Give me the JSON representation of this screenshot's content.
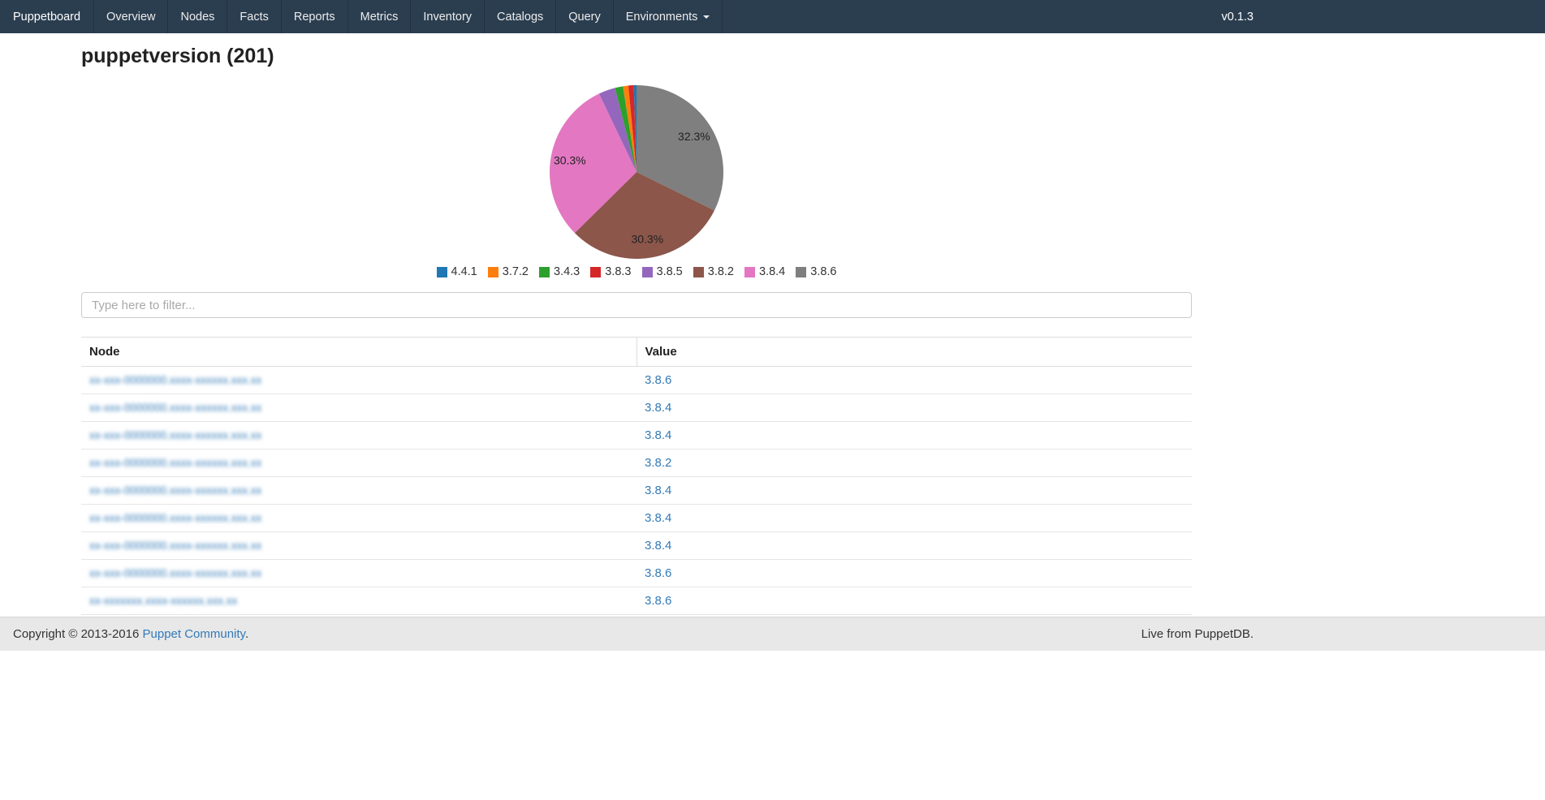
{
  "navbar": {
    "brand": "Puppetboard",
    "items": [
      "Overview",
      "Nodes",
      "Facts",
      "Reports",
      "Metrics",
      "Inventory",
      "Catalogs",
      "Query"
    ],
    "environments": "Environments",
    "version": "v0.1.3"
  },
  "page": {
    "title": "puppetversion (201)"
  },
  "chart_data": {
    "type": "pie",
    "unit": "percent",
    "slices": [
      {
        "label": "4.4.1",
        "value": 0.5,
        "color": "#1f77b4"
      },
      {
        "label": "3.7.2",
        "value": 1.0,
        "color": "#ff7f0e"
      },
      {
        "label": "3.4.3",
        "value": 1.5,
        "color": "#2ca02c"
      },
      {
        "label": "3.8.3",
        "value": 1.0,
        "color": "#d62728"
      },
      {
        "label": "3.8.5",
        "value": 3.1,
        "color": "#9467bd"
      },
      {
        "label": "3.8.2",
        "value": 30.3,
        "color": "#8c564b"
      },
      {
        "label": "3.8.4",
        "value": 30.3,
        "color": "#e377c2"
      },
      {
        "label": "3.8.6",
        "value": 32.3,
        "color": "#7f7f7f"
      }
    ],
    "draw_order": [
      "3.8.6",
      "3.8.2",
      "3.8.4",
      "3.8.5",
      "3.4.3",
      "3.7.2",
      "3.8.3",
      "4.4.1"
    ],
    "start_angle": "top",
    "direction": "clockwise",
    "legend_position": "bottom",
    "visible_percent_labels": [
      "32.3%",
      "30.3%",
      "30.3%"
    ],
    "label_min_value": 5
  },
  "filter": {
    "placeholder": "Type here to filter..."
  },
  "table": {
    "columns": [
      "Node",
      "Value"
    ],
    "node_links_redacted": true,
    "rows": [
      {
        "node": "xx-xxx-0000000.xxxx-xxxxxx.xxx.xx",
        "value": "3.8.6"
      },
      {
        "node": "xx-xxx-0000000.xxxx-xxxxxx.xxx.xx",
        "value": "3.8.4"
      },
      {
        "node": "xx-xxx-0000000.xxxx-xxxxxx.xxx.xx",
        "value": "3.8.4"
      },
      {
        "node": "xx-xxx-0000000.xxxx-xxxxxx.xxx.xx",
        "value": "3.8.2"
      },
      {
        "node": "xx-xxx-0000000.xxxx-xxxxxx.xxx.xx",
        "value": "3.8.4"
      },
      {
        "node": "xx-xxx-0000000.xxxx-xxxxxx.xxx.xx",
        "value": "3.8.4"
      },
      {
        "node": "xx-xxx-0000000.xxxx-xxxxxx.xxx.xx",
        "value": "3.8.4"
      },
      {
        "node": "xx-xxx-0000000.xxxx-xxxxxx.xxx.xx",
        "value": "3.8.6"
      },
      {
        "node": "xx-xxxxxxx.xxxx-xxxxxx.xxx.xx",
        "value": "3.8.6"
      }
    ]
  },
  "footer": {
    "copyright_prefix": "Copyright © 2013-2016 ",
    "community_link": "Puppet Community",
    "copyright_suffix": ".",
    "status": "Live from PuppetDB."
  }
}
